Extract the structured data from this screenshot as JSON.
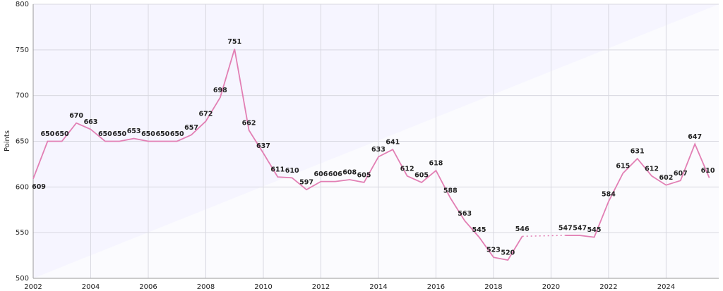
{
  "chart_data": {
    "type": "line",
    "y_label": "Points",
    "x": [
      2002,
      2002.5,
      2003,
      2003.5,
      2004,
      2004.5,
      2005,
      2005.5,
      2006,
      2006.5,
      2007,
      2007.5,
      2008,
      2008.5,
      2009,
      2009.5,
      2010,
      2010.5,
      2011,
      2011.5,
      2012,
      2012.5,
      2013,
      2013.5,
      2014,
      2014.5,
      2015,
      2015.5,
      2016,
      2016.5,
      2017,
      2017.5,
      2018,
      2018.5,
      2019,
      2019.5,
      2020,
      2020.5,
      2021,
      2021.5,
      2022,
      2022.5,
      2023,
      2023.5,
      2024,
      2024.5,
      2025,
      2025.5
    ],
    "series": [
      {
        "name": "Points",
        "color": "#e27fb4",
        "values": [
          609,
          650,
          650,
          670,
          663,
          650,
          650,
          653,
          650,
          650,
          650,
          657,
          672,
          698,
          751,
          662,
          637,
          611,
          610,
          597,
          606,
          606,
          608,
          605,
          633,
          641,
          612,
          605,
          618,
          588,
          563,
          545,
          523,
          520,
          546,
          null,
          null,
          547,
          547,
          545,
          584,
          615,
          631,
          612,
          602,
          607,
          647,
          610
        ]
      }
    ],
    "xlim": [
      2002,
      2025.83
    ],
    "xticks": [
      2002,
      2004,
      2006,
      2008,
      2010,
      2012,
      2014,
      2016,
      2018,
      2020,
      2022,
      2024
    ],
    "ylim": [
      500,
      800
    ],
    "yticks": [
      500,
      550,
      600,
      650,
      700,
      750,
      800
    ],
    "grid": true,
    "gaps": "dotted"
  }
}
